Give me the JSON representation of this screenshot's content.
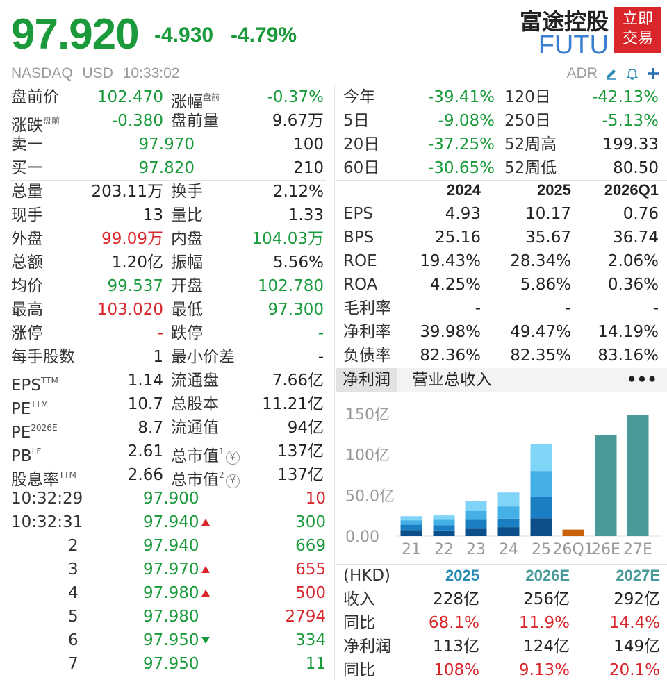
{
  "header": {
    "price": "97.920",
    "change": "-4.930",
    "change_pct": "-4.79%",
    "company_name": "富途控股",
    "ticker": "FUTU",
    "trade_button": "立即\n交易",
    "trade_button_line1": "立即",
    "trade_button_line2": "交易",
    "exchange": "NASDAQ",
    "currency": "USD",
    "time": "10:33:02",
    "adr_label": "ADR",
    "icons": [
      "edit-icon",
      "bell-icon",
      "plus-icon"
    ],
    "accent_color": "#1a9a3a",
    "down_color": "#1a9a3a",
    "up_color": "#d8262b",
    "brand_color": "#d8262b"
  },
  "quote_left": {
    "premarket_price_label": "盘前价",
    "premarket_price": "102.470",
    "change_rate_label": "涨幅",
    "change_rate_sup": "盘前",
    "change_rate": "-0.37%",
    "change_amount_label": "涨跌",
    "change_amount_sup": "盘前",
    "change_amount": "-0.380",
    "premarket_vol_label": "盘前量",
    "premarket_vol": "9.67万",
    "ask_label": "卖一",
    "ask_price": "97.970",
    "ask_vol": "100",
    "bid_label": "买一",
    "bid_price": "97.820",
    "bid_vol": "210",
    "stats": [
      {
        "l1": "总量",
        "v1": "203.11万",
        "c1": "dark",
        "l2": "换手",
        "v2": "2.12%",
        "c2": "dark"
      },
      {
        "l1": "现手",
        "v1": "13",
        "c1": "dark",
        "l2": "量比",
        "v2": "1.33",
        "c2": "dark"
      },
      {
        "l1": "外盘",
        "v1": "99.09万",
        "c1": "red",
        "l2": "内盘",
        "v2": "104.03万",
        "c2": "green"
      },
      {
        "l1": "总额",
        "v1": "1.20亿",
        "c1": "dark",
        "l2": "振幅",
        "v2": "5.56%",
        "c2": "dark"
      },
      {
        "l1": "均价",
        "v1": "99.537",
        "c1": "green",
        "l2": "开盘",
        "v2": "102.780",
        "c2": "green"
      },
      {
        "l1": "最高",
        "v1": "103.020",
        "c1": "red",
        "l2": "最低",
        "v2": "97.300",
        "c2": "green"
      },
      {
        "l1": "涨停",
        "v1": "-",
        "c1": "red",
        "l2": "跌停",
        "v2": "-",
        "c2": "green"
      },
      {
        "l1": "每手股数",
        "v1": "1",
        "c1": "dark",
        "l2": "最小价差",
        "v2": "-",
        "c2": "dark"
      }
    ],
    "valuation": [
      {
        "l1": "EPS",
        "s1": "TTM",
        "v1": "1.14",
        "l2": "流通盘",
        "s2": "",
        "v2": "7.66亿"
      },
      {
        "l1": "PE",
        "s1": "TTM",
        "v1": "10.7",
        "l2": "总股本",
        "s2": "",
        "v2": "11.21亿"
      },
      {
        "l1": "PE",
        "s1": "2026E",
        "v1": "8.7",
        "l2": "流通值",
        "s2": "",
        "v2": "94亿"
      },
      {
        "l1": "PB",
        "s1": "LF",
        "v1": "2.61",
        "l2": "总市值",
        "s2": "1",
        "v2": "137亿"
      },
      {
        "l1": "股息率",
        "s1": "TTM",
        "v1": "2.66",
        "l2": "总市值",
        "s2": "2",
        "v2": "137亿"
      }
    ],
    "yuan_icon_glyph": "¥"
  },
  "ticks": [
    {
      "time": "10:32:29",
      "price": "97.900",
      "arrow": "",
      "vol": "10",
      "vc": "red"
    },
    {
      "time": "10:32:31",
      "price": "97.940",
      "arrow": "up",
      "vol": "300",
      "vc": "green"
    },
    {
      "time": "2",
      "price": "97.940",
      "arrow": "",
      "vol": "669",
      "vc": "green"
    },
    {
      "time": "3",
      "price": "97.970",
      "arrow": "up",
      "vol": "655",
      "vc": "red"
    },
    {
      "time": "4",
      "price": "97.980",
      "arrow": "up",
      "vol": "500",
      "vc": "red"
    },
    {
      "time": "5",
      "price": "97.980",
      "arrow": "",
      "vol": "2794",
      "vc": "red"
    },
    {
      "time": "6",
      "price": "97.950",
      "arrow": "down",
      "vol": "334",
      "vc": "green"
    },
    {
      "time": "7",
      "price": "97.950",
      "arrow": "",
      "vol": "11",
      "vc": "green"
    }
  ],
  "performance": [
    {
      "l1": "今年",
      "v1": "-39.41%",
      "l2": "120日",
      "v2": "-42.13%"
    },
    {
      "l1": "5日",
      "v1": "-9.08%",
      "l2": "250日",
      "v2": "-5.13%"
    },
    {
      "l1": "20日",
      "v1": "-37.25%",
      "l2": "52周高",
      "v2": "199.33"
    },
    {
      "l1": "60日",
      "v1": "-30.65%",
      "l2": "52周低",
      "v2": "80.50"
    }
  ],
  "fundamentals": {
    "headers": [
      "2024",
      "2025",
      "2026Q1"
    ],
    "rows": [
      {
        "label": "EPS",
        "values": [
          "4.93",
          "10.17",
          "0.76"
        ]
      },
      {
        "label": "BPS",
        "values": [
          "25.16",
          "35.67",
          "36.74"
        ]
      },
      {
        "label": "ROE",
        "values": [
          "19.43%",
          "28.34%",
          "2.06%"
        ]
      },
      {
        "label": "ROA",
        "values": [
          "4.25%",
          "5.86%",
          "0.36%"
        ]
      },
      {
        "label": "毛利率",
        "values": [
          "-",
          "-",
          "-"
        ]
      },
      {
        "label": "净利率",
        "values": [
          "39.98%",
          "49.47%",
          "14.19%"
        ]
      },
      {
        "label": "负债率",
        "values": [
          "82.36%",
          "82.35%",
          "83.16%"
        ]
      }
    ]
  },
  "tabs": {
    "active": "净利润",
    "other": "营业总收入",
    "more": "•••"
  },
  "chart_data": {
    "type": "bar",
    "categories": [
      "21",
      "22",
      "23",
      "24",
      "25",
      "26Q1",
      "26E",
      "27E"
    ],
    "y_ticks": [
      "150亿",
      "100亿",
      "50.0亿",
      "0.00"
    ],
    "ylim": [
      0,
      150
    ],
    "stacked_quarters": [
      [
        7.5,
        6.5,
        5.5,
        5.0
      ],
      [
        7.0,
        6.5,
        6.5,
        5.5
      ],
      [
        10.0,
        10.0,
        11.0,
        12.0
      ],
      [
        11.0,
        10.5,
        15.0,
        17.0
      ],
      [
        22.0,
        26.0,
        32.0,
        33.0
      ],
      [
        8.0
      ],
      [
        124.0
      ],
      [
        149.0
      ]
    ],
    "quarter_colors": [
      "#0d4f8a",
      "#1a7fc2",
      "#45b0e6",
      "#7fd4f7"
    ],
    "q1_color": "#c8630a",
    "estimate_color": "#4a9a9a"
  },
  "forecast": {
    "currency": "(HKD)",
    "headers": [
      "2025",
      "2026E",
      "2027E"
    ],
    "rows": [
      {
        "label": "收入",
        "values": [
          "228亿",
          "256亿",
          "292亿"
        ],
        "color": "dark"
      },
      {
        "label": "同比",
        "values": [
          "68.1%",
          "11.9%",
          "14.4%"
        ],
        "color": "red"
      },
      {
        "label": "净利润",
        "values": [
          "113亿",
          "124亿",
          "149亿"
        ],
        "color": "dark"
      },
      {
        "label": "同比",
        "values": [
          "108%",
          "9.13%",
          "20.1%"
        ],
        "color": "red"
      }
    ]
  }
}
